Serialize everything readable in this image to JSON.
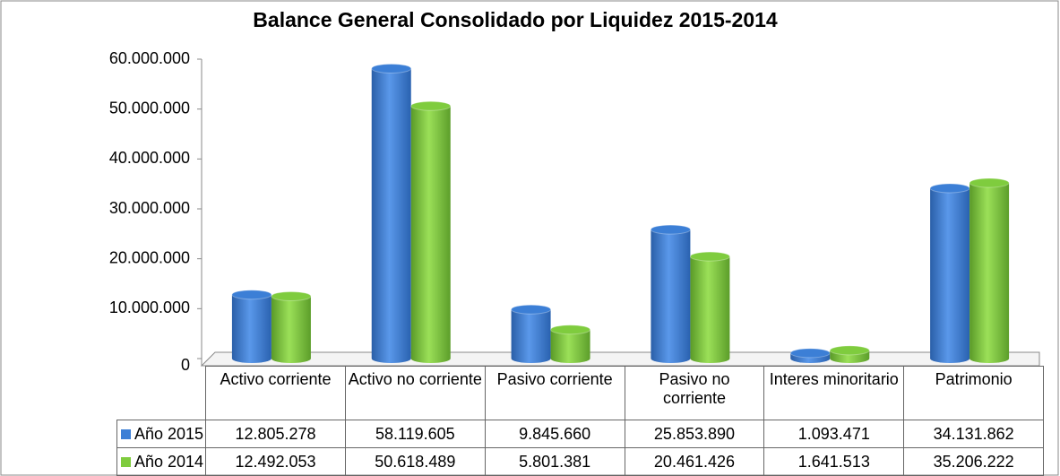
{
  "chart_data": {
    "type": "bar",
    "title": "Balance General Consolidado por Liquidez 2015-2014",
    "categories": [
      "Activo corriente",
      "Activo no corriente",
      "Pasivo corriente",
      "Pasivo no corriente",
      "Interes minoritario",
      "Patrimonio"
    ],
    "series": [
      {
        "name": "Año 2015",
        "color": "#3c7fd6",
        "values": [
          12805278,
          58119605,
          9845660,
          25853890,
          1093471,
          34131862
        ],
        "value_labels": [
          "12.805.278",
          "58.119.605",
          "9.845.660",
          "25.853.890",
          "1.093.471",
          "34.131.862"
        ]
      },
      {
        "name": "Año 2014",
        "color": "#7fcc3e",
        "values": [
          12492053,
          50618489,
          5801381,
          20461426,
          1641513,
          35206222
        ],
        "value_labels": [
          "12.492.053",
          "50.618.489",
          "5.801.381",
          "20.461.426",
          "1.641.513",
          "35.206.222"
        ]
      }
    ],
    "ylim": [
      0,
      60000000
    ],
    "yticks": [
      {
        "value": 0,
        "label": "0"
      },
      {
        "value": 10000000,
        "label": "10.000.000"
      },
      {
        "value": 20000000,
        "label": "20.000.000"
      },
      {
        "value": 30000000,
        "label": "30.000.000"
      },
      {
        "value": 40000000,
        "label": "40.000.000"
      },
      {
        "value": 50000000,
        "label": "50.000.000"
      },
      {
        "value": 60000000,
        "label": "60.000.000"
      }
    ],
    "grid": false
  }
}
